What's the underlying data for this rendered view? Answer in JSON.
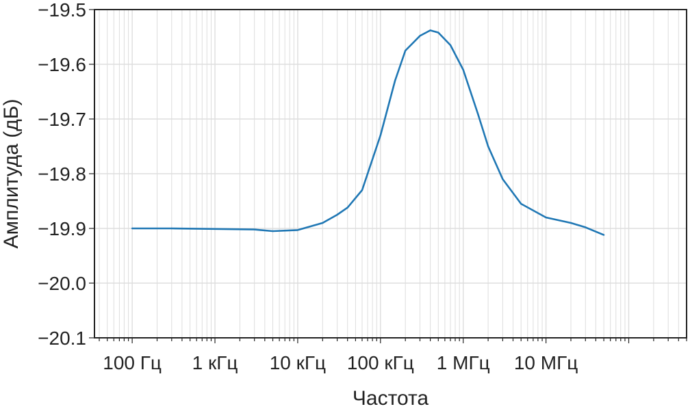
{
  "chart_data": {
    "type": "line",
    "title": "",
    "xlabel": "Частота",
    "ylabel": "Амплитуда (дБ)",
    "xscale": "log",
    "xlim": [
      35,
      500000000
    ],
    "ylim": [
      -20.1,
      -19.5
    ],
    "grid": true,
    "legend": "none",
    "x_ticks": [
      {
        "value": 100,
        "label": "100 Гц"
      },
      {
        "value": 1000,
        "label": "1 кГц"
      },
      {
        "value": 10000,
        "label": "10 кГц"
      },
      {
        "value": 100000,
        "label": "100 кГц"
      },
      {
        "value": 1000000,
        "label": "1 МГц"
      },
      {
        "value": 10000000,
        "label": "10 МГц"
      }
    ],
    "y_ticks": [
      {
        "value": -19.5,
        "label": "−19.5"
      },
      {
        "value": -19.6,
        "label": "−19.6"
      },
      {
        "value": -19.7,
        "label": "−19.7"
      },
      {
        "value": -19.8,
        "label": "−19.8"
      },
      {
        "value": -19.9,
        "label": "−19.9"
      },
      {
        "value": -20.0,
        "label": "−20.0"
      },
      {
        "value": -20.1,
        "label": "−20.1"
      }
    ],
    "series": [
      {
        "color": "#1f77b4",
        "x": [
          100,
          300,
          1000,
          3000,
          5000,
          10000,
          20000,
          30000,
          40000,
          60000,
          100000,
          150000,
          200000,
          300000,
          400000,
          500000,
          700000,
          1000000,
          1500000,
          2000000,
          3000000,
          5000000,
          10000000,
          20000000,
          30000000,
          50000000
        ],
        "y": [
          -19.9,
          -19.9,
          -19.901,
          -19.902,
          -19.905,
          -19.903,
          -19.89,
          -19.875,
          -19.862,
          -19.83,
          -19.73,
          -19.63,
          -19.575,
          -19.548,
          -19.538,
          -19.542,
          -19.565,
          -19.61,
          -19.69,
          -19.75,
          -19.81,
          -19.855,
          -19.88,
          -19.89,
          -19.898,
          -19.912
        ]
      }
    ]
  }
}
